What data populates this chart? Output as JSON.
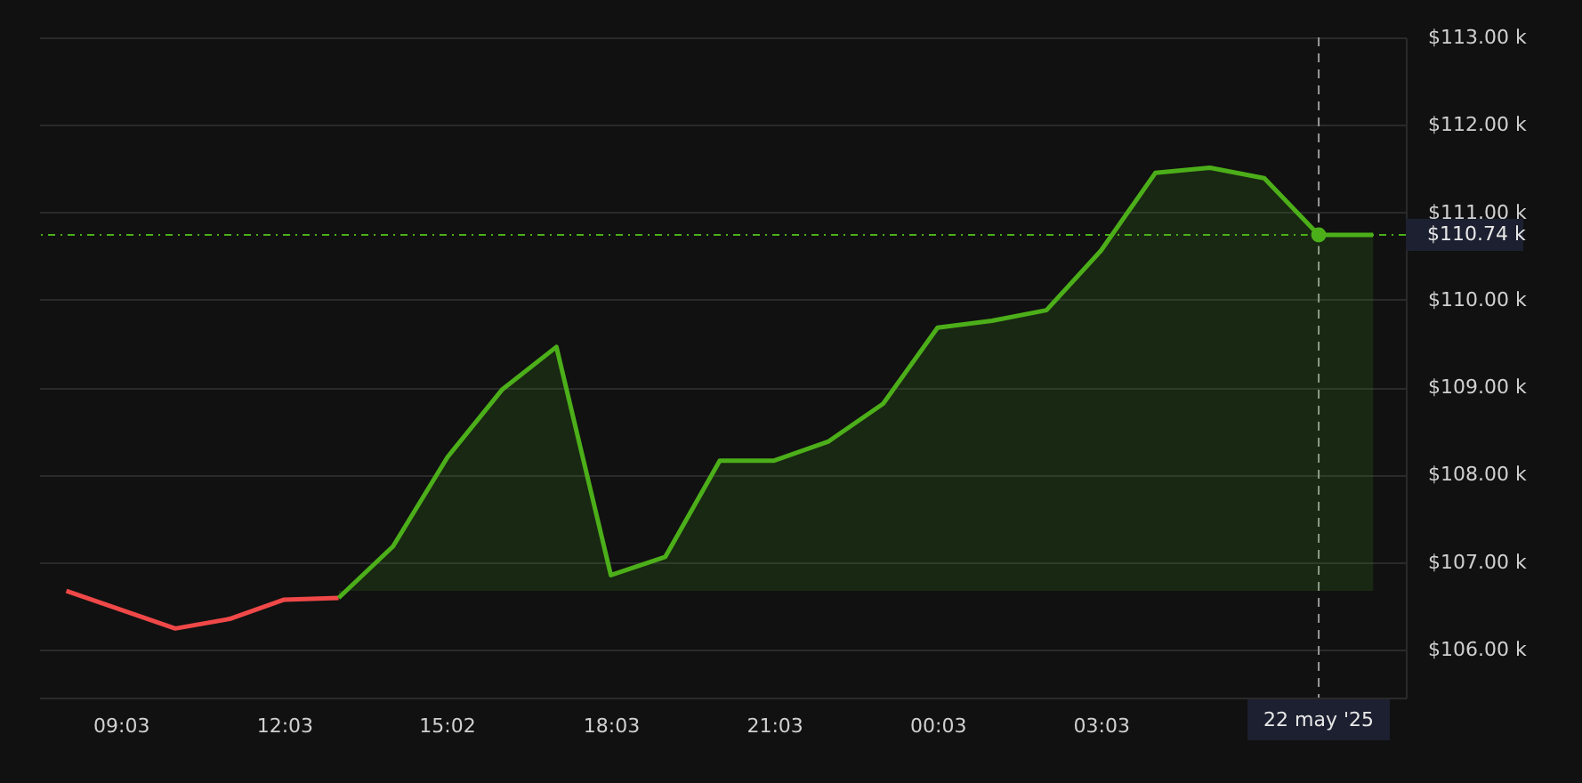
{
  "chart_data": {
    "type": "area",
    "x": [
      "2025-05-21T08:03",
      "2025-05-21T10:03",
      "2025-05-21T11:03",
      "2025-05-21T12:03",
      "2025-05-21T13:03",
      "2025-05-21T14:03",
      "2025-05-21T15:03",
      "2025-05-21T16:03",
      "2025-05-21T17:03",
      "2025-05-21T18:03",
      "2025-05-21T19:03",
      "2025-05-21T20:03",
      "2025-05-21T21:03",
      "2025-05-21T22:03",
      "2025-05-21T23:03",
      "2025-05-22T00:03",
      "2025-05-22T01:03",
      "2025-05-22T02:03",
      "2025-05-22T03:03",
      "2025-05-22T04:03",
      "2025-05-22T05:03",
      "2025-05-22T06:03",
      "2025-05-22T07:03",
      "2025-05-22T08:03"
    ],
    "series": [
      {
        "type": "line",
        "color": "#f04848",
        "values": [
          106.67,
          106.24,
          106.35,
          106.57,
          106.59,
          null,
          null,
          null,
          null,
          null,
          null,
          null,
          null,
          null,
          null,
          null,
          null,
          null,
          null,
          null,
          null,
          null,
          null,
          null
        ]
      },
      {
        "color": "#4caf1a",
        "values": [
          null,
          null,
          null,
          null,
          106.59,
          107.18,
          108.2,
          108.97,
          109.46,
          106.85,
          107.06,
          108.16,
          108.16,
          108.38,
          108.81,
          109.68,
          109.76,
          109.88,
          110.56,
          111.45,
          111.51,
          111.39,
          110.74,
          110.74
        ]
      }
    ],
    "xlim": [
      "2025-05-21T07:33",
      "2025-05-22T08:39"
    ],
    "xticks": [
      {
        "value": "2025-05-21T09:03",
        "label": "09:03"
      },
      {
        "value": "2025-05-21T12:03",
        "label": "12:03"
      },
      {
        "value": "2025-05-21T15:02",
        "label": "15:02"
      },
      {
        "value": "2025-05-21T18:03",
        "label": "18:03"
      },
      {
        "value": "2025-05-21T21:03",
        "label": "21:03"
      },
      {
        "value": "2025-05-22T00:03",
        "label": "00:03"
      },
      {
        "value": "2025-05-22T03:03",
        "label": "03:03"
      }
    ],
    "ylim": [
      105.45,
      113.0
    ],
    "yticks": [
      {
        "value": 106,
        "label": "$106.00 k"
      },
      {
        "value": 107,
        "label": "$107.00 k"
      },
      {
        "value": 108,
        "label": "$108.00 k"
      },
      {
        "value": 109,
        "label": "$109.00 k"
      },
      {
        "value": 110,
        "label": "$110.00 k"
      },
      {
        "value": 111,
        "label": "$111.00 k"
      },
      {
        "value": 112,
        "label": "$112.00 k"
      },
      {
        "value": 113,
        "label": "$113.00 k"
      }
    ],
    "ref_lines": [
      {
        "axis": "y",
        "value": 110.74,
        "label": "$110.74 k",
        "color": "#4caf1a",
        "line_style": "dotted"
      },
      {
        "axis": "x",
        "value": "2025-05-22T07:03",
        "label": "22 may '25",
        "color": "#9a9a9a",
        "line_style": "dashed"
      }
    ],
    "grid": "y"
  }
}
